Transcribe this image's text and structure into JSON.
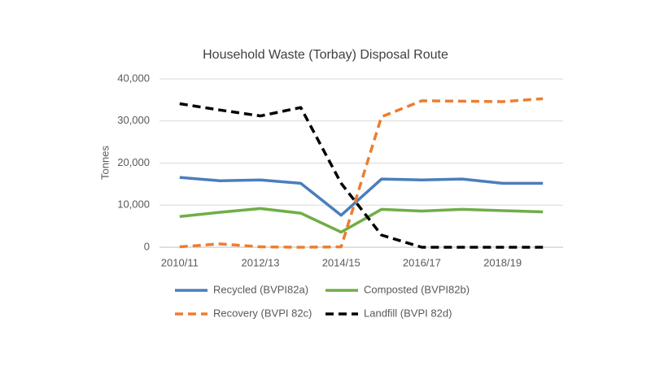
{
  "chart_data": {
    "type": "line",
    "title": "Household Waste (Torbay) Disposal Route",
    "y_label": "Tonnes",
    "categories": [
      "2010/11",
      null,
      "2012/13",
      null,
      "2014/15",
      null,
      "2016/17",
      null,
      "2018/19",
      null
    ],
    "series": [
      {
        "name": "Recycled (BVPI82a)",
        "color": "#4a7ebb",
        "dash": "solid",
        "values": [
          16600,
          15800,
          16000,
          15200,
          7600,
          16200,
          16000,
          16200,
          15200,
          15200
        ]
      },
      {
        "name": "Composted (BVPI82b)",
        "color": "#70ad47",
        "dash": "solid",
        "values": [
          7300,
          8300,
          9200,
          8100,
          3600,
          9000,
          8600,
          9000,
          8700,
          8400
        ]
      },
      {
        "name": "Recovery (BVPI 82c)",
        "color": "#ed7d31",
        "dash": "dashed",
        "values": [
          100,
          800,
          100,
          0,
          100,
          31000,
          34800,
          34700,
          34600,
          35300
        ]
      },
      {
        "name": "Landfill (BVPI 82d)",
        "color": "#000000",
        "dash": "dashed",
        "values": [
          34100,
          32600,
          31200,
          33200,
          15200,
          2900,
          0,
          0,
          0,
          0
        ]
      }
    ],
    "ylim": [
      0,
      40000
    ],
    "yticks": [
      0,
      {
        "value": 10000,
        "label": "10,000"
      },
      {
        "value": 20000,
        "label": "20,000"
      },
      {
        "value": 30000,
        "label": "30,000"
      },
      {
        "value": 40000,
        "label": "40,000"
      }
    ],
    "grid": true,
    "legend": "bottom"
  }
}
